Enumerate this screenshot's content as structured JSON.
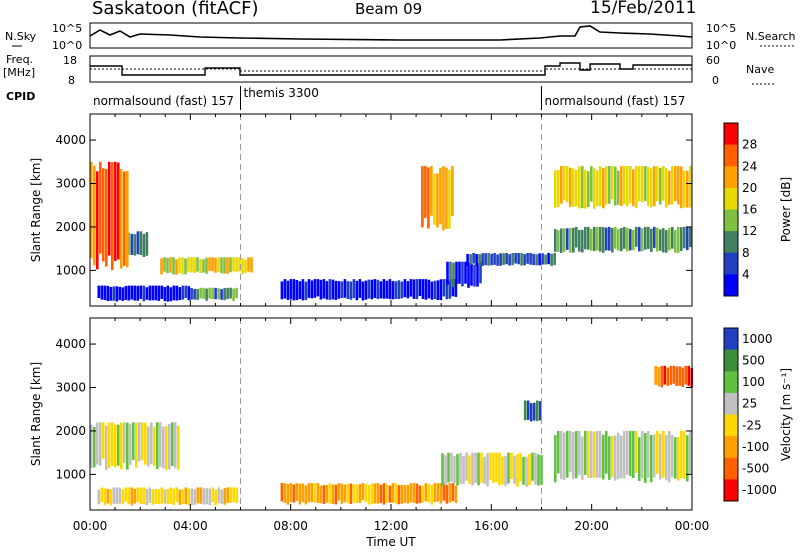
{
  "header": {
    "station": "Saskatoon (fitACF)",
    "beam": "Beam 09",
    "date": "15/Feb/2011"
  },
  "strip": {
    "nsky_label": "N.Sky",
    "nsky_ticks": [
      "10^5",
      "10^0"
    ],
    "nsearch_label": "N.Search",
    "nsearch_ticks": [
      "10^5",
      "10^0"
    ],
    "freq_label_1": "Freq.",
    "freq_label_2": "[MHz]",
    "freq_ticks": [
      "18",
      "8"
    ],
    "nave_label": "Nave",
    "nave_ticks": [
      "60",
      "0"
    ],
    "cpid_label": "CPID",
    "cpid_segments": [
      {
        "label": "normalsound (fast) 157",
        "start_hour": 0,
        "end_hour": 6
      },
      {
        "label": "themis 3300",
        "start_hour": 6,
        "end_hour": 18
      },
      {
        "label": "normalsound (fast) 157",
        "start_hour": 18,
        "end_hour": 24
      }
    ]
  },
  "chart_data": [
    {
      "type": "heatmap",
      "name": "power",
      "ylabel": "Slant Range [km]",
      "yticks": [
        "1000",
        "2000",
        "3000",
        "4000"
      ],
      "ylim": [
        180,
        4600
      ],
      "xlim": [
        0,
        24
      ],
      "colorbar_label": "Power [dB]",
      "colorbar_ticks": [
        "28",
        "24",
        "20",
        "16",
        "12",
        "8",
        "4"
      ],
      "colorbar_colors": [
        "#ff0000",
        "#ff6000",
        "#ffa000",
        "#e8d800",
        "#80c040",
        "#408060",
        "#2040c0",
        "#0000ff"
      ],
      "regions": [
        {
          "start_hour": 0.3,
          "end_hour": 4.0,
          "range_min": 280,
          "range_max": 650,
          "level": 7
        },
        {
          "start_hour": 4.0,
          "end_hour": 5.9,
          "range_min": 300,
          "range_max": 600,
          "level": 5
        },
        {
          "start_hour": 1.5,
          "end_hour": 2.3,
          "range_min": 1300,
          "range_max": 1900,
          "level": 5
        },
        {
          "start_hour": 2.8,
          "end_hour": 6.5,
          "range_min": 900,
          "range_max": 1300,
          "level": 3
        },
        {
          "start_hour": 7.6,
          "end_hour": 14.6,
          "range_min": 300,
          "range_max": 800,
          "level": 7
        },
        {
          "start_hour": 14.2,
          "end_hour": 15.6,
          "range_min": 600,
          "range_max": 1200,
          "level": 6
        },
        {
          "start_hour": 15.0,
          "end_hour": 18.5,
          "range_min": 1100,
          "range_max": 1400,
          "level": 6
        },
        {
          "start_hour": 18.5,
          "end_hour": 24.0,
          "range_min": 1400,
          "range_max": 2000,
          "level": 5
        },
        {
          "start_hour": 18.5,
          "end_hour": 24.0,
          "range_min": 2400,
          "range_max": 3400,
          "level": 3
        },
        {
          "start_hour": 0.0,
          "end_hour": 1.5,
          "range_min": 1000,
          "range_max": 3500,
          "level": 1
        },
        {
          "start_hour": 13.2,
          "end_hour": 14.4,
          "range_min": 1900,
          "range_max": 3400,
          "level": 2
        }
      ]
    },
    {
      "type": "heatmap",
      "name": "velocity",
      "ylabel": "Slant Range [km]",
      "yticks": [
        "1000",
        "2000",
        "3000",
        "4000"
      ],
      "ylim": [
        180,
        4600
      ],
      "xlim": [
        0,
        24
      ],
      "colorbar_label": "Velocity [m s⁻¹]",
      "colorbar_ticks": [
        "1000",
        "500",
        "100",
        "25",
        "-25",
        "-100",
        "-500",
        "-1000"
      ],
      "colorbar_colors": [
        "#2040c0",
        "#3c8c3c",
        "#60c040",
        "#c0c0c0",
        "#ffd800",
        "#ffa000",
        "#ff6000",
        "#ff0000"
      ],
      "regions": [
        {
          "start_hour": 0.3,
          "end_hour": 5.9,
          "range_min": 280,
          "range_max": 700,
          "level": 4
        },
        {
          "start_hour": 0.0,
          "end_hour": 3.5,
          "range_min": 1100,
          "range_max": 2200,
          "level": 3
        },
        {
          "start_hour": 7.6,
          "end_hour": 14.6,
          "range_min": 300,
          "range_max": 800,
          "level": 5
        },
        {
          "start_hour": 14.0,
          "end_hour": 18.0,
          "range_min": 700,
          "range_max": 1500,
          "level": 3
        },
        {
          "start_hour": 18.5,
          "end_hour": 24.0,
          "range_min": 800,
          "range_max": 2000,
          "level": 3
        },
        {
          "start_hour": 22.5,
          "end_hour": 24.0,
          "range_min": 3000,
          "range_max": 3500,
          "level": 6
        },
        {
          "start_hour": 17.3,
          "end_hour": 18.0,
          "range_min": 2200,
          "range_max": 2700,
          "level": 0
        }
      ]
    }
  ],
  "xaxis": {
    "label": "Time UT",
    "ticks": [
      "00:00",
      "04:00",
      "08:00",
      "12:00",
      "16:00",
      "20:00",
      "00:00"
    ]
  },
  "vlines_hours": [
    6,
    18
  ]
}
